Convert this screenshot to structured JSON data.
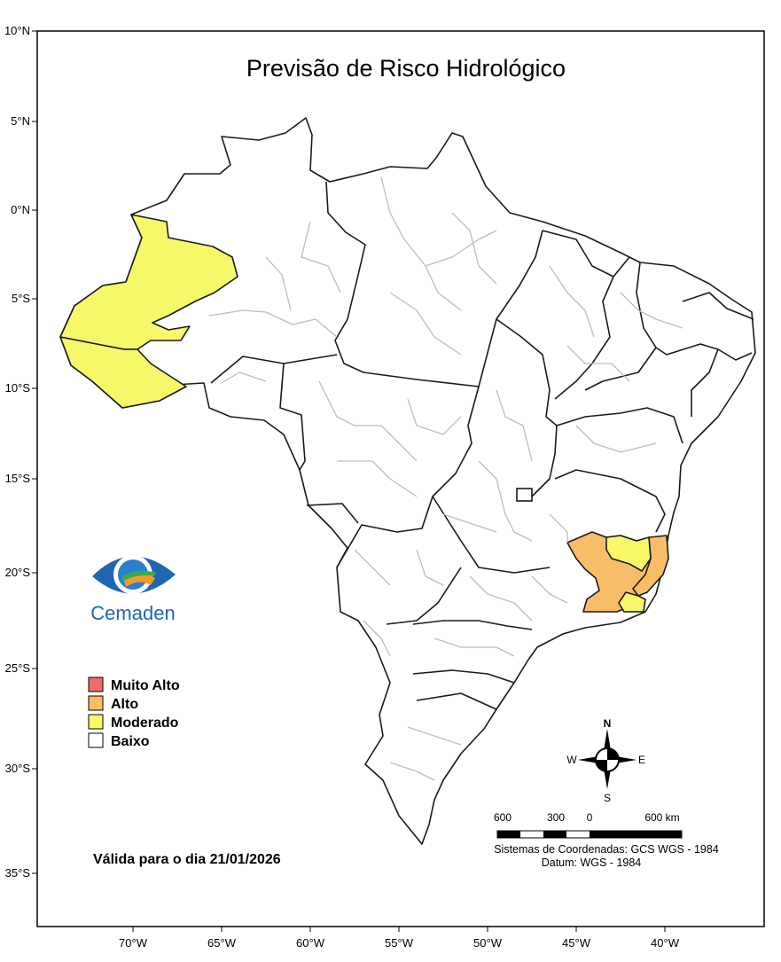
{
  "map": {
    "title": "Previsão de Risco Hidrológico",
    "validity": "Válida para o dia 21/01/2026",
    "lat_labels": [
      "10°N",
      "5°N",
      "0°N",
      "5°S",
      "10°S",
      "15°S",
      "20°S",
      "25°S",
      "30°S",
      "35°S"
    ],
    "lon_labels": [
      "70°W",
      "65°W",
      "60°W",
      "55°W",
      "50°W",
      "45°W",
      "40°W"
    ]
  },
  "logo": {
    "text": "Cemaden"
  },
  "legend": {
    "items": [
      {
        "label": "Muito Alto",
        "color": "#f26b6b"
      },
      {
        "label": "Alto",
        "color": "#f7bd69"
      },
      {
        "label": "Moderado",
        "color": "#f7f76a"
      },
      {
        "label": "Baixo",
        "color": "#ffffff"
      }
    ]
  },
  "compass": {
    "n": "N",
    "s": "S",
    "e": "E",
    "w": "W"
  },
  "scalebar": {
    "labels": [
      "600",
      "300",
      "0",
      "600 km"
    ],
    "coord_system": "Sistemas de Coordenadas: GCS WGS - 1984",
    "datum": "Datum: WGS - 1984"
  },
  "colors": {
    "moderado": "#f7f76a",
    "alto": "#f7bd69",
    "baixo": "#ffffff"
  }
}
